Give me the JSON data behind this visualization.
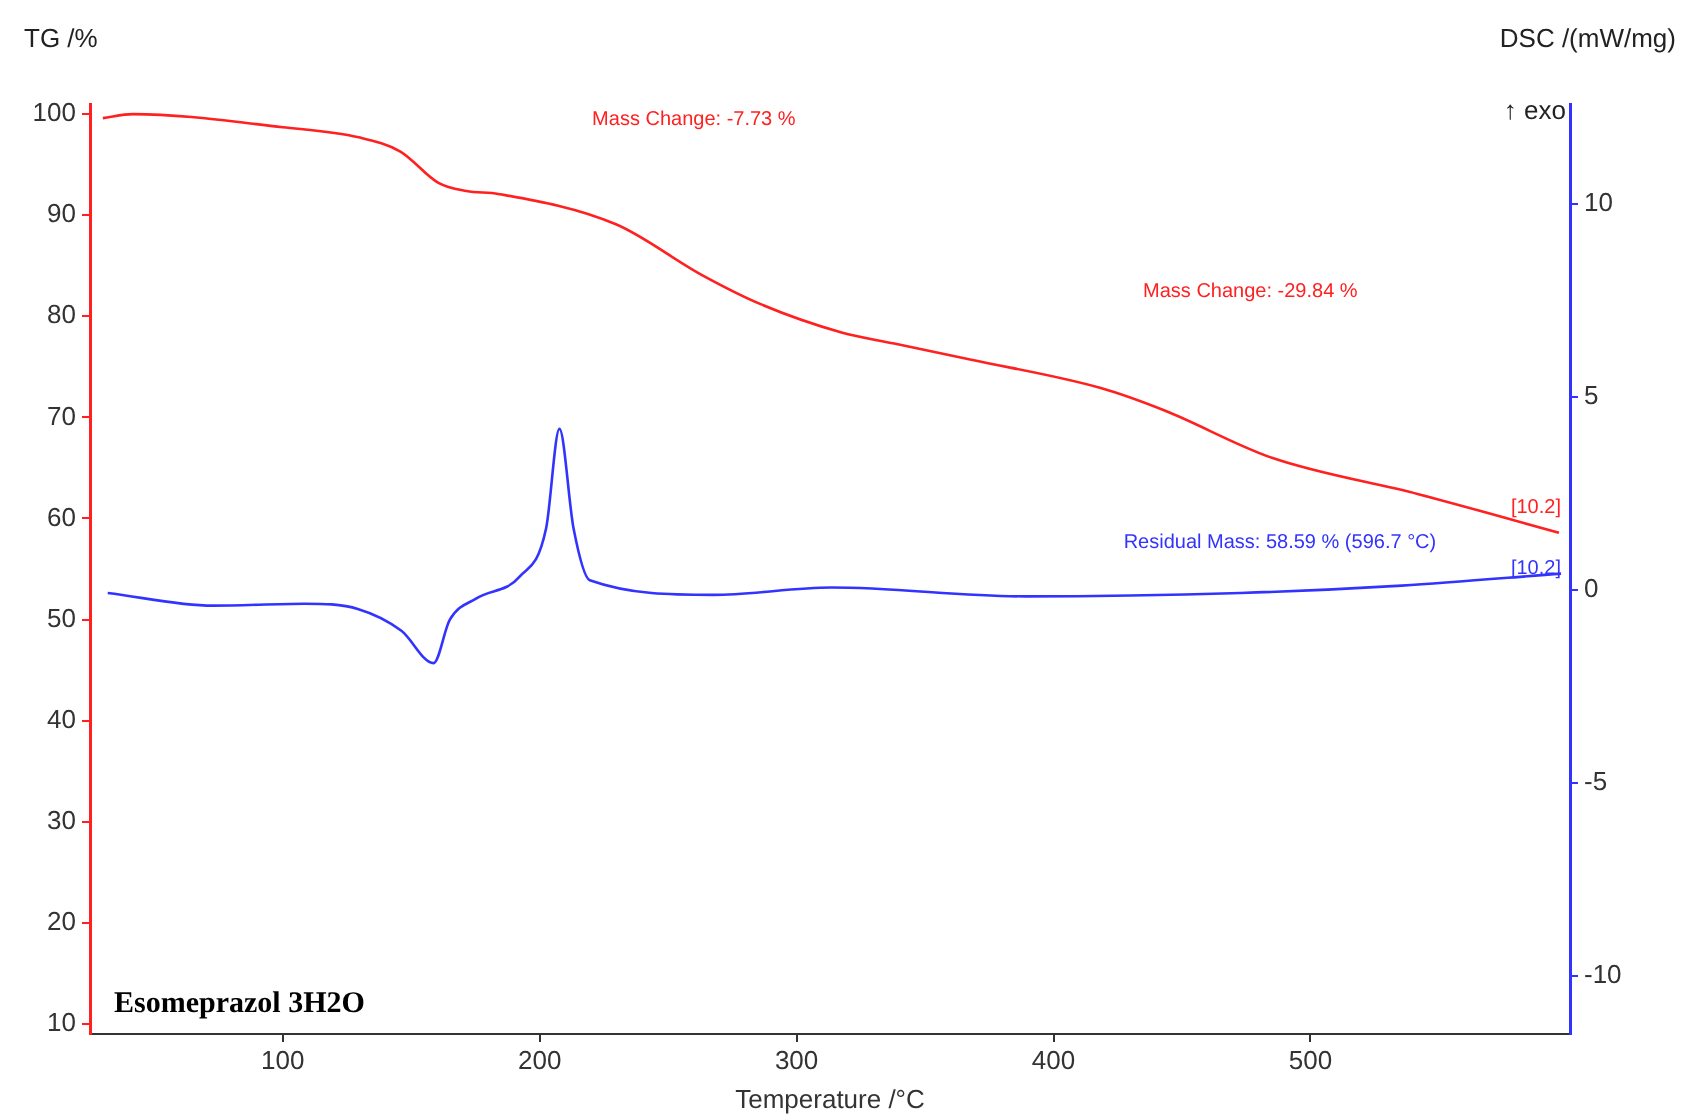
{
  "chart_data": {
    "type": "line",
    "title": "Esomeprazol 3H2O",
    "xlabel": "Temperature /°C",
    "ylabel": "TG /%",
    "y2label": "DSC /(mW/mg)",
    "xlim": [
      25,
      601
    ],
    "xticks": [
      100,
      200,
      300,
      400,
      500
    ],
    "ylim": [
      9,
      101
    ],
    "yticks": [
      10,
      20,
      30,
      40,
      50,
      60,
      70,
      80,
      90,
      100
    ],
    "y2lim": [
      -11.5,
      12.6
    ],
    "y2ticks": [
      -10,
      -5,
      0,
      5,
      10
    ],
    "grid": false,
    "legend": false,
    "marker": "none",
    "series": [
      {
        "color": "#ff2020",
        "x": [
          30,
          41.7,
          100,
          129.5,
          145.8,
          160.6,
          171.5,
          183.9,
          229.7,
          263,
          286,
          317.5,
          338,
          368,
          418.4,
          443,
          485,
          542,
          596.7
        ],
        "values": [
          99.6,
          100,
          98.7,
          97.7,
          96.3,
          93.2,
          92.4,
          92.1,
          89.1,
          84.1,
          81.2,
          78.4,
          77.3,
          75.7,
          72.9,
          70.7,
          66,
          62.4,
          58.59
        ]
      },
      {
        "color": "#3333ff",
        "axis": "y2",
        "x": [
          31.9,
          72.8,
          108.5,
          129.5,
          146.2,
          158.7,
          165,
          175.4,
          192.3,
          202.5,
          207.7,
          213.2,
          219.5,
          267.6,
          313.6,
          389,
          472.8,
          535.5,
          597.5
        ],
        "values": [
          -0.07,
          -0.4,
          -0.35,
          -0.49,
          -1.05,
          -1.89,
          -0.77,
          -0.21,
          0.36,
          1.6,
          4.18,
          1.6,
          0.26,
          -0.12,
          0.07,
          -0.16,
          -0.07,
          0.12,
          0.43
        ]
      }
    ],
    "annotations": [
      "Mass Change: -7.73 %",
      "Mass Change: -29.84 %",
      "Residual Mass: 58.59 % (596.7 °C)",
      "[10.2]",
      "[10.2]",
      "↑ exo"
    ]
  }
}
